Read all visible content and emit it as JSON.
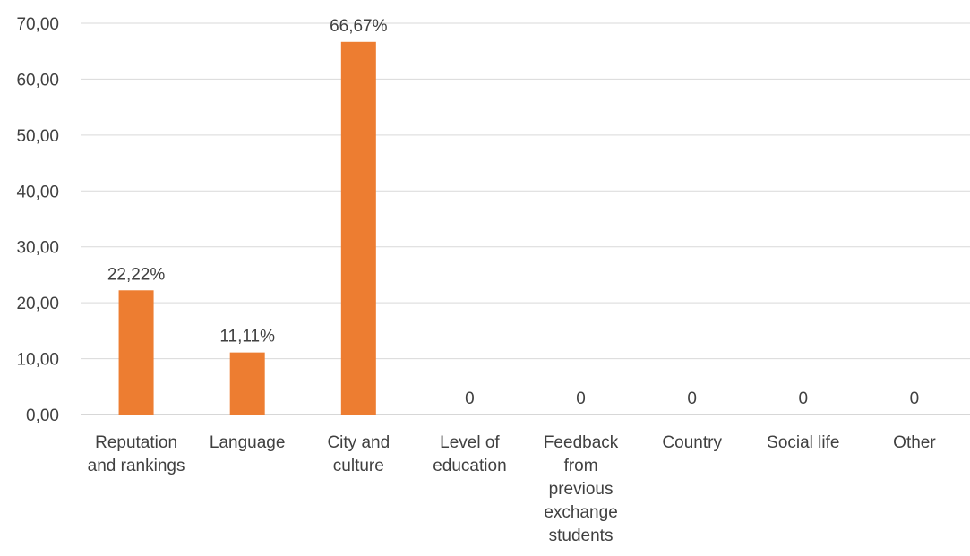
{
  "chart_data": {
    "type": "bar",
    "categories": [
      [
        "Reputation",
        "and rankings"
      ],
      [
        "Language"
      ],
      [
        "City and",
        "culture"
      ],
      [
        "Level of",
        "education"
      ],
      [
        "Feedback",
        "from",
        "previous",
        "exchange",
        "students"
      ],
      [
        "Country"
      ],
      [
        "Social life"
      ],
      [
        "Other"
      ]
    ],
    "values": [
      22.22,
      11.11,
      66.67,
      0,
      0,
      0,
      0,
      0
    ],
    "data_labels": [
      "22,22%",
      "11,11%",
      "66,67%",
      "0",
      "0",
      "0",
      "0",
      "0"
    ],
    "ylim": [
      0,
      70
    ],
    "yticks": [
      0,
      10,
      20,
      30,
      40,
      50,
      60,
      70
    ],
    "ytick_labels": [
      "0,00",
      "10,00",
      "20,00",
      "30,00",
      "40,00",
      "50,00",
      "60,00",
      "70,00"
    ],
    "bar_color": "#ed7d31",
    "grid": true,
    "legend": "none"
  }
}
